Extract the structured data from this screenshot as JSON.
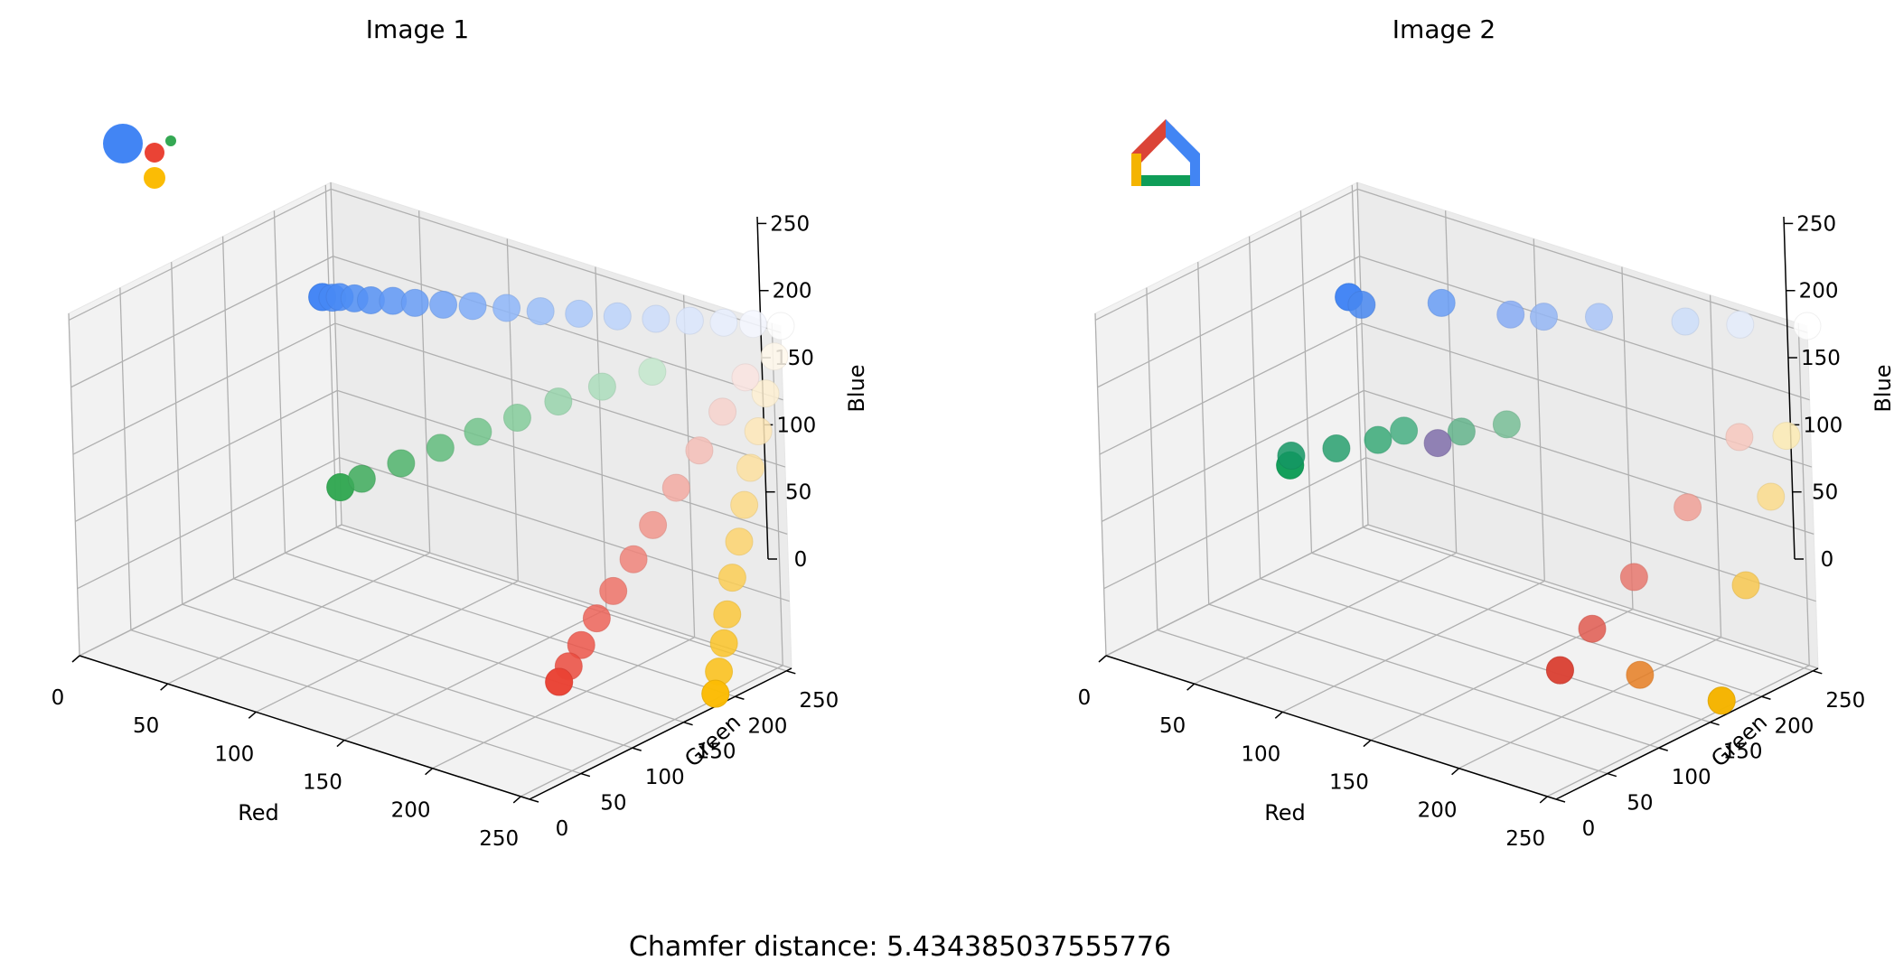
{
  "figure": {
    "caption_prefix": "Chamfer distance:",
    "caption_value": "5.434385037555776"
  },
  "chart_data": [
    {
      "type": "scatter",
      "projection": "3d",
      "title": "Image 1",
      "xlabel": "Red",
      "ylabel": "Green",
      "zlabel": "Blue",
      "xlim": [
        0,
        255
      ],
      "ylim": [
        0,
        255
      ],
      "zlim": [
        0,
        255
      ],
      "ticks": [
        0,
        50,
        100,
        150,
        200,
        250
      ],
      "grid": true,
      "thumbnail_icon": "google-assistant-logo-icon",
      "thumbnail_colors": [
        "#4285F4",
        "#EA4335",
        "#34A853",
        "#FBBC05"
      ],
      "points": [
        [
          66,
          133,
          244
        ],
        [
          66,
          133,
          244
        ],
        [
          70,
          136,
          244
        ],
        [
          73,
          138,
          245
        ],
        [
          79,
          142,
          245
        ],
        [
          86,
          146,
          245
        ],
        [
          95,
          152,
          246
        ],
        [
          104,
          158,
          246
        ],
        [
          116,
          165,
          247
        ],
        [
          128,
          173,
          248
        ],
        [
          142,
          182,
          249
        ],
        [
          156,
          191,
          249
        ],
        [
          172,
          201,
          250
        ],
        [
          188,
          211,
          251
        ],
        [
          204,
          221,
          252
        ],
        [
          218,
          230,
          253
        ],
        [
          232,
          239,
          254
        ],
        [
          244,
          247,
          255
        ],
        [
          255,
          255,
          255
        ],
        [
          52,
          168,
          83
        ],
        [
          52,
          168,
          83
        ],
        [
          62,
          172,
          92
        ],
        [
          80,
          180,
          108
        ],
        [
          98,
          188,
          124
        ],
        [
          115,
          196,
          140
        ],
        [
          133,
          204,
          155
        ],
        [
          152,
          212,
          172
        ],
        [
          172,
          221,
          188
        ],
        [
          195,
          231,
          205
        ],
        [
          234,
          67,
          53
        ],
        [
          234,
          67,
          53
        ],
        [
          235,
          75,
          62
        ],
        [
          236,
          86,
          74
        ],
        [
          237,
          100,
          89
        ],
        [
          238,
          115,
          104
        ],
        [
          240,
          132,
          122
        ],
        [
          241,
          150,
          141
        ],
        [
          243,
          170,
          162
        ],
        [
          245,
          190,
          183
        ],
        [
          247,
          210,
          205
        ],
        [
          250,
          228,
          225
        ],
        [
          251,
          188,
          5
        ],
        [
          251,
          188,
          5
        ],
        [
          251,
          192,
          20
        ],
        [
          252,
          196,
          40
        ],
        [
          252,
          200,
          60
        ],
        [
          252,
          206,
          85
        ],
        [
          253,
          212,
          110
        ],
        [
          253,
          218,
          135
        ],
        [
          253,
          225,
          160
        ],
        [
          254,
          232,
          185
        ],
        [
          254,
          240,
          210
        ],
        [
          255,
          248,
          235
        ]
      ]
    },
    {
      "type": "scatter",
      "projection": "3d",
      "title": "Image 2",
      "xlabel": "Red",
      "ylabel": "Green",
      "zlabel": "Blue",
      "xlim": [
        0,
        255
      ],
      "ylim": [
        0,
        255
      ],
      "zlim": [
        0,
        255
      ],
      "ticks": [
        0,
        50,
        100,
        150,
        200,
        250
      ],
      "grid": true,
      "thumbnail_icon": "google-home-logo-icon",
      "thumbnail_colors": [
        "#DB4437",
        "#4285F4",
        "#0F9D58",
        "#F4B400"
      ],
      "points": [
        [
          66,
          133,
          244
        ],
        [
          66,
          133,
          244
        ],
        [
          72,
          135,
          240
        ],
        [
          104,
          158,
          246
        ],
        [
          135,
          172,
          245
        ],
        [
          148,
          182,
          245
        ],
        [
          170,
          198,
          248
        ],
        [
          205,
          222,
          250
        ],
        [
          228,
          236,
          252
        ],
        [
          255,
          255,
          255
        ],
        [
          15,
          157,
          88
        ],
        [
          15,
          157,
          88
        ],
        [
          20,
          150,
          100
        ],
        [
          40,
          160,
          110
        ],
        [
          58,
          170,
          120
        ],
        [
          70,
          175,
          130
        ],
        [
          100,
          180,
          140
        ],
        [
          120,
          190,
          150
        ],
        [
          128,
          110,
          170
        ],
        [
          219,
          68,
          55
        ],
        [
          219,
          68,
          55
        ],
        [
          225,
          90,
          80
        ],
        [
          232,
          120,
          110
        ],
        [
          240,
          160,
          150
        ],
        [
          247,
          200,
          190
        ],
        [
          244,
          180,
          0
        ],
        [
          244,
          180,
          0
        ],
        [
          248,
          200,
          80
        ],
        [
          252,
          220,
          140
        ],
        [
          253,
          235,
          180
        ],
        [
          230,
          126,
          34
        ]
      ]
    }
  ]
}
